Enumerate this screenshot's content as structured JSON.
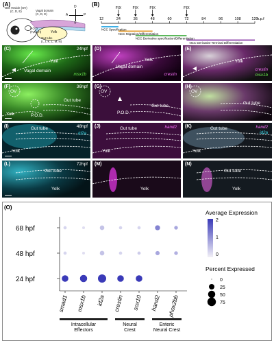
{
  "panels_row_ab": {
    "A": {
      "label": "(A)",
      "otic_vesicle": "Otic Vesicle (OV)",
      "otic_letters": "(C, D, E)",
      "vagal_domain": "Vagal domain",
      "vagal_letters": "(C, D, E)",
      "pod": "P.O.D",
      "pod_letters": "(F, G, H)",
      "yolk": "Yolk",
      "gut_tube": "Gut tube",
      "gut_letters": "(I, J, K, L, M, N)",
      "compass": {
        "D": "D",
        "A": "A",
        "P": "P",
        "V": "V"
      }
    },
    "B": {
      "label": "(B)",
      "fix_label": "FIX",
      "ticks": [
        "12",
        "24",
        "36",
        "48",
        "60",
        "72",
        "84",
        "96",
        "108",
        "120"
      ],
      "unit": "h.p.f",
      "fix_times": [
        24,
        36,
        48,
        72
      ],
      "bars": [
        {
          "label": "NCC Specification",
          "start": 12,
          "end": 24,
          "color": "#3fb0e6"
        },
        {
          "label": "NCC Migration/Differentiation",
          "start": 24,
          "end": 48,
          "color": "#e6a23a"
        },
        {
          "label": "NCC Derivative specification/Differentiation",
          "start": 36,
          "end": 72,
          "color": "#5cb85c"
        },
        {
          "label": "NCC Derivative Terminal Differentiation",
          "start": 72,
          "end": 120,
          "color": "#9b59b6"
        }
      ]
    }
  },
  "image_panels": {
    "C": {
      "label": "(C)",
      "time": "24hpf",
      "gene": "msx1b",
      "labels": [
        "Yolk",
        "Vagal domain"
      ]
    },
    "D": {
      "label": "(D)",
      "gene": "crestin",
      "labels": [
        "Yolk",
        "Vagal domain"
      ]
    },
    "E": {
      "label": "(E)",
      "gene1": "crestin",
      "gene2": "msx1b",
      "labels": [
        "Yolk"
      ]
    },
    "F": {
      "label": "(F)",
      "time": "36hpf",
      "labels": [
        "OV",
        "Yolk",
        "Gut tube",
        "P.O.D."
      ]
    },
    "G": {
      "label": "(G)",
      "labels": [
        "OV",
        "P.O.D.",
        "Gut tube"
      ]
    },
    "H": {
      "label": "(H)",
      "labels": [
        "OV",
        "Gut tube"
      ]
    },
    "I": {
      "label": "(I)",
      "time": "48hpf",
      "gene": "id2a",
      "labels": [
        "Gut tube",
        "Yolk"
      ]
    },
    "J": {
      "label": "(J)",
      "gene": "hand2",
      "labels": [
        "Gut tube",
        "Yolk"
      ]
    },
    "K": {
      "label": "(K)",
      "gene1": "hand2",
      "gene2": "id2a",
      "labels": [
        "Gut tube",
        "Yolk"
      ]
    },
    "L": {
      "label": "(L)",
      "time": "72hpf",
      "labels": [
        "Gut tube",
        "Yolk"
      ]
    },
    "M": {
      "label": "(M)",
      "labels": [
        "Yolk"
      ]
    },
    "N": {
      "label": "(N)",
      "labels": [
        "Gut tube",
        "Yolk"
      ]
    }
  },
  "panel_O_label": "(O)",
  "chart_data": {
    "type": "dotplot",
    "x_genes": [
      "smad1",
      "msx1b",
      "id2a",
      "crestin",
      "sox10",
      "hand2",
      "phox2bb"
    ],
    "y_times": [
      "68 hpf",
      "48 hpf",
      "24 hpf"
    ],
    "avg_expression": [
      [
        0.3,
        0.2,
        0.5,
        0.3,
        0.3,
        1.2,
        0.8
      ],
      [
        0.3,
        0.2,
        0.5,
        0.3,
        0.4,
        0.8,
        0.7
      ],
      [
        2.0,
        2.0,
        2.0,
        2.0,
        2.0,
        0.0,
        0.0
      ]
    ],
    "percent_expressed": [
      [
        5,
        3,
        15,
        5,
        5,
        20,
        8
      ],
      [
        5,
        3,
        15,
        5,
        5,
        12,
        8
      ],
      [
        40,
        50,
        70,
        40,
        40,
        0,
        0
      ]
    ],
    "groups": [
      {
        "label": "Intracellular Effectors",
        "genes": [
          "smad1",
          "msx1b",
          "id2a"
        ]
      },
      {
        "label": "Neural Crest",
        "genes": [
          "crestin",
          "sox10"
        ]
      },
      {
        "label": "Enteric Neural Crest",
        "genes": [
          "hand2",
          "phox2bb"
        ]
      }
    ],
    "legend_avg": {
      "title": "Average Expression",
      "ticks": [
        "2",
        "1",
        "0"
      ],
      "low": "#f2f0f7",
      "high": "#3a3ab8"
    },
    "legend_pct": {
      "title": "Percent Expressed",
      "ticks": [
        "0",
        "25",
        "50",
        "75"
      ]
    }
  }
}
